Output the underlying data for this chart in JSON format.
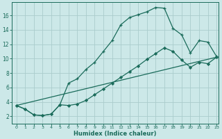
{
  "title": "",
  "xlabel": "Humidex (Indice chaleur)",
  "bg_color": "#cce8e8",
  "grid_color": "#aacccc",
  "line_color": "#1a6b5a",
  "xlim": [
    -0.5,
    23.2
  ],
  "ylim": [
    1.0,
    17.8
  ],
  "xticks": [
    0,
    1,
    2,
    3,
    4,
    5,
    6,
    7,
    8,
    9,
    10,
    11,
    12,
    13,
    14,
    15,
    16,
    17,
    18,
    19,
    20,
    21,
    22,
    23
  ],
  "yticks": [
    2,
    4,
    6,
    8,
    10,
    12,
    14,
    16
  ],
  "line1_x": [
    0,
    1,
    2,
    3,
    4,
    5,
    6,
    7,
    8,
    9,
    10,
    11,
    12,
    13,
    14,
    15,
    16,
    17,
    18,
    19,
    20,
    21,
    22,
    23
  ],
  "line1_y": [
    3.5,
    3.0,
    2.2,
    2.1,
    2.3,
    3.6,
    6.6,
    7.2,
    8.5,
    9.5,
    11.0,
    12.5,
    14.7,
    15.7,
    16.1,
    16.5,
    17.1,
    17.0,
    14.2,
    13.3,
    10.8,
    12.5,
    12.3,
    10.3
  ],
  "line2_x": [
    0,
    1,
    2,
    3,
    4,
    5,
    6,
    7,
    8,
    9,
    10,
    11,
    12,
    13,
    14,
    15,
    16,
    17,
    18,
    19,
    20,
    21,
    22,
    23
  ],
  "line2_y": [
    3.5,
    3.0,
    2.2,
    2.1,
    2.3,
    3.6,
    3.5,
    3.7,
    4.2,
    5.0,
    5.8,
    6.6,
    7.4,
    8.2,
    9.0,
    9.9,
    10.7,
    11.5,
    11.0,
    9.8,
    8.8,
    9.5,
    9.3,
    10.2
  ],
  "line3_x": [
    0,
    23
  ],
  "line3_y": [
    3.5,
    10.2
  ]
}
